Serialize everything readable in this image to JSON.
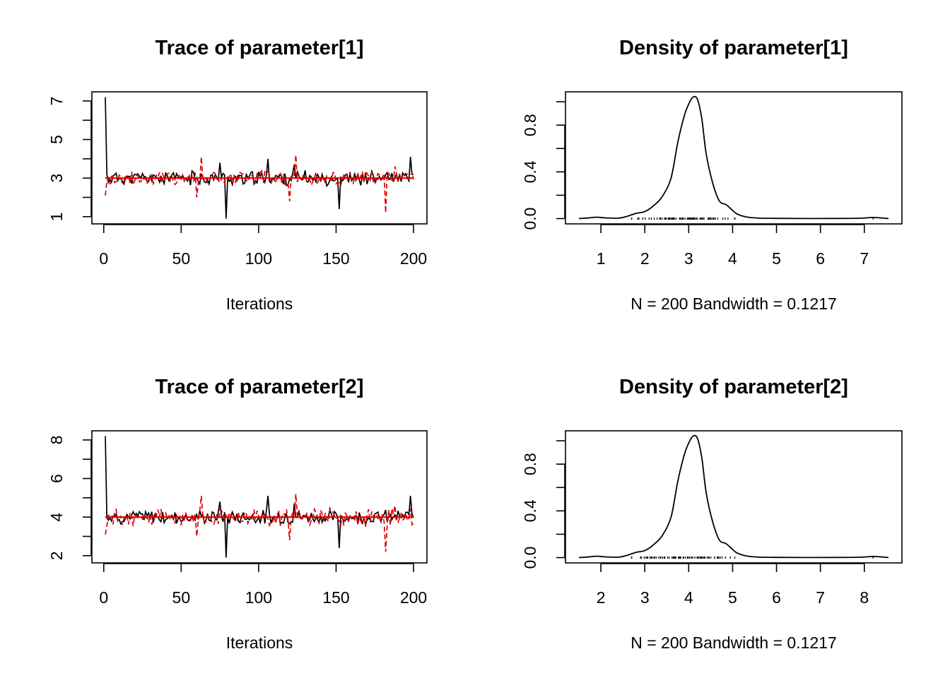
{
  "chart_data": [
    {
      "type": "line",
      "title": "Trace of parameter[1]",
      "xlabel": "Iterations",
      "xlim": [
        1,
        200
      ],
      "ylim": [
        0.9,
        7.2
      ],
      "xticks": [
        0,
        50,
        100,
        150,
        200
      ],
      "yticks": [
        1,
        3,
        5,
        7
      ],
      "series": [
        {
          "color": "#000000",
          "dash": "solid",
          "start": 7.2,
          "center": 3.0,
          "spread": 0.28,
          "dip": {
            "x": 79,
            "y": 0.9
          },
          "spikes": [
            [
              106,
              4.0
            ],
            [
              152,
              1.4
            ],
            [
              198,
              4.1
            ],
            [
              75,
              3.8
            ],
            [
              123,
              3.7
            ]
          ]
        },
        {
          "color": "#dd0000",
          "dash": "dashed",
          "start": 2.1,
          "center": 3.0,
          "spread": 0.35,
          "dip": {
            "x": 182,
            "y": 1.2
          },
          "spikes": [
            [
              63,
              4.1
            ],
            [
              124,
              4.2
            ],
            [
              120,
              1.8
            ],
            [
              188,
              3.6
            ],
            [
              60,
              2.0
            ]
          ]
        }
      ],
      "mean_line": {
        "color": "#dd0000",
        "value": 3.0
      }
    },
    {
      "type": "area",
      "title": "Density of parameter[1]",
      "xlabel": "N = 200   Bandwidth = 0.1217",
      "xlim": [
        0.5,
        7.55
      ],
      "ylim": [
        0,
        1.04
      ],
      "xticks": [
        1,
        2,
        3,
        4,
        5,
        6,
        7
      ],
      "yticks": [
        "0.0",
        "0.4",
        "0.8"
      ],
      "ytick_values": [
        0,
        0.4,
        0.8
      ],
      "points": [
        [
          0.5,
          0.0
        ],
        [
          0.7,
          0.005
        ],
        [
          0.9,
          0.012
        ],
        [
          1.1,
          0.006
        ],
        [
          1.4,
          0.004
        ],
        [
          1.6,
          0.02
        ],
        [
          1.8,
          0.045
        ],
        [
          2.0,
          0.06
        ],
        [
          2.2,
          0.11
        ],
        [
          2.4,
          0.19
        ],
        [
          2.6,
          0.35
        ],
        [
          2.75,
          0.65
        ],
        [
          2.9,
          0.88
        ],
        [
          3.0,
          0.98
        ],
        [
          3.1,
          1.04
        ],
        [
          3.2,
          1.02
        ],
        [
          3.3,
          0.85
        ],
        [
          3.4,
          0.55
        ],
        [
          3.55,
          0.3
        ],
        [
          3.7,
          0.15
        ],
        [
          3.85,
          0.12
        ],
        [
          4.0,
          0.07
        ],
        [
          4.1,
          0.04
        ],
        [
          4.3,
          0.015
        ],
        [
          4.6,
          0.004
        ],
        [
          5.0,
          0.002
        ],
        [
          6.0,
          0.001
        ],
        [
          6.9,
          0.003
        ],
        [
          7.2,
          0.01
        ],
        [
          7.55,
          0.0
        ]
      ],
      "rug_range": [
        1.7,
        4.05
      ]
    },
    {
      "type": "line",
      "title": "Trace of parameter[2]",
      "xlabel": "Iterations",
      "xlim": [
        1,
        200
      ],
      "ylim": [
        1.9,
        8.2
      ],
      "xticks": [
        0,
        50,
        100,
        150,
        200
      ],
      "yticks": [
        2,
        4,
        6,
        8
      ],
      "series": [
        {
          "color": "#000000",
          "dash": "solid",
          "start": 8.2,
          "center": 4.0,
          "spread": 0.28,
          "dip": {
            "x": 79,
            "y": 1.9
          },
          "spikes": [
            [
              106,
              5.1
            ],
            [
              152,
              2.4
            ],
            [
              198,
              5.1
            ],
            [
              75,
              4.8
            ],
            [
              123,
              4.7
            ]
          ]
        },
        {
          "color": "#dd0000",
          "dash": "dashed",
          "start": 3.1,
          "center": 4.0,
          "spread": 0.35,
          "dip": {
            "x": 182,
            "y": 2.2
          },
          "spikes": [
            [
              63,
              5.1
            ],
            [
              124,
              5.2
            ],
            [
              120,
              2.8
            ],
            [
              188,
              4.6
            ],
            [
              60,
              3.0
            ]
          ]
        }
      ],
      "mean_line": {
        "color": "#dd0000",
        "value": 4.0
      }
    },
    {
      "type": "area",
      "title": "Density of parameter[2]",
      "xlabel": "N = 200   Bandwidth = 0.1217",
      "xlim": [
        1.5,
        8.55
      ],
      "ylim": [
        0,
        1.04
      ],
      "xticks": [
        2,
        3,
        4,
        5,
        6,
        7,
        8
      ],
      "yticks": [
        "0.0",
        "0.4",
        "0.8"
      ],
      "ytick_values": [
        0,
        0.4,
        0.8
      ],
      "points": [
        [
          1.5,
          0.0
        ],
        [
          1.7,
          0.005
        ],
        [
          1.9,
          0.012
        ],
        [
          2.1,
          0.006
        ],
        [
          2.4,
          0.004
        ],
        [
          2.6,
          0.02
        ],
        [
          2.8,
          0.045
        ],
        [
          3.0,
          0.06
        ],
        [
          3.2,
          0.11
        ],
        [
          3.4,
          0.19
        ],
        [
          3.6,
          0.35
        ],
        [
          3.75,
          0.65
        ],
        [
          3.9,
          0.88
        ],
        [
          4.0,
          0.98
        ],
        [
          4.1,
          1.04
        ],
        [
          4.2,
          1.02
        ],
        [
          4.3,
          0.85
        ],
        [
          4.4,
          0.55
        ],
        [
          4.55,
          0.3
        ],
        [
          4.7,
          0.15
        ],
        [
          4.85,
          0.12
        ],
        [
          5.0,
          0.07
        ],
        [
          5.1,
          0.04
        ],
        [
          5.3,
          0.015
        ],
        [
          5.6,
          0.004
        ],
        [
          6.0,
          0.002
        ],
        [
          7.0,
          0.001
        ],
        [
          7.9,
          0.003
        ],
        [
          8.2,
          0.01
        ],
        [
          8.55,
          0.0
        ]
      ],
      "rug_range": [
        2.7,
        5.05
      ]
    }
  ]
}
